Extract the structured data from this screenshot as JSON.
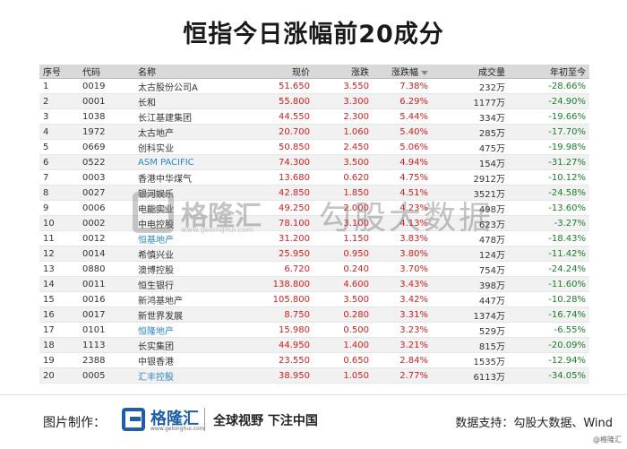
{
  "title": "恒指今日涨幅前20成分",
  "table": {
    "headers": [
      "序号",
      "代码",
      "名称",
      "现价",
      "涨跌",
      "涨跌幅",
      "成交量",
      "年初至今"
    ],
    "rows": [
      {
        "idx": "1",
        "code": "0019",
        "name": "太古股份公司A",
        "price": "51.650",
        "chg": "3.550",
        "pct": "7.38%",
        "vol": "232万",
        "ytd": "-28.66%",
        "link": false
      },
      {
        "idx": "2",
        "code": "0001",
        "name": "长和",
        "price": "55.800",
        "chg": "3.300",
        "pct": "6.29%",
        "vol": "1177万",
        "ytd": "-24.90%",
        "link": false
      },
      {
        "idx": "3",
        "code": "1038",
        "name": "长江基建集团",
        "price": "44.550",
        "chg": "2.300",
        "pct": "5.44%",
        "vol": "334万",
        "ytd": "-19.66%",
        "link": false
      },
      {
        "idx": "4",
        "code": "1972",
        "name": "太古地产",
        "price": "20.700",
        "chg": "1.060",
        "pct": "5.40%",
        "vol": "285万",
        "ytd": "-17.70%",
        "link": false
      },
      {
        "idx": "5",
        "code": "0669",
        "name": "创科实业",
        "price": "50.850",
        "chg": "2.450",
        "pct": "5.06%",
        "vol": "475万",
        "ytd": "-19.98%",
        "link": false
      },
      {
        "idx": "6",
        "code": "0522",
        "name": "ASM PACIFIC",
        "price": "74.300",
        "chg": "3.500",
        "pct": "4.94%",
        "vol": "154万",
        "ytd": "-31.27%",
        "link": true
      },
      {
        "idx": "7",
        "code": "0003",
        "name": "香港中华煤气",
        "price": "13.680",
        "chg": "0.620",
        "pct": "4.75%",
        "vol": "2912万",
        "ytd": "-10.12%",
        "link": false
      },
      {
        "idx": "8",
        "code": "0027",
        "name": "银河娱乐",
        "price": "42.850",
        "chg": "1.850",
        "pct": "4.51%",
        "vol": "3521万",
        "ytd": "-24.58%",
        "link": false
      },
      {
        "idx": "9",
        "code": "0006",
        "name": "电能实业",
        "price": "49.250",
        "chg": "2.000",
        "pct": "4.23%",
        "vol": "498万",
        "ytd": "-13.60%",
        "link": false
      },
      {
        "idx": "10",
        "code": "0002",
        "name": "中电控股",
        "price": "78.100",
        "chg": "3.100",
        "pct": "4.13%",
        "vol": "623万",
        "ytd": "-3.27%",
        "link": false
      },
      {
        "idx": "11",
        "code": "0012",
        "name": "恒基地产",
        "price": "31.200",
        "chg": "1.150",
        "pct": "3.83%",
        "vol": "478万",
        "ytd": "-18.43%",
        "link": true
      },
      {
        "idx": "12",
        "code": "0014",
        "name": "希慎兴业",
        "price": "25.950",
        "chg": "0.950",
        "pct": "3.80%",
        "vol": "124万",
        "ytd": "-11.42%",
        "link": false
      },
      {
        "idx": "13",
        "code": "0880",
        "name": "澳博控股",
        "price": "6.720",
        "chg": "0.240",
        "pct": "3.70%",
        "vol": "754万",
        "ytd": "-24.24%",
        "link": false
      },
      {
        "idx": "14",
        "code": "0011",
        "name": "恒生银行",
        "price": "138.800",
        "chg": "4.600",
        "pct": "3.43%",
        "vol": "398万",
        "ytd": "-11.60%",
        "link": false
      },
      {
        "idx": "15",
        "code": "0016",
        "name": "新鸿基地产",
        "price": "105.800",
        "chg": "3.500",
        "pct": "3.42%",
        "vol": "447万",
        "ytd": "-10.28%",
        "link": false
      },
      {
        "idx": "16",
        "code": "0017",
        "name": "新世界发展",
        "price": "8.750",
        "chg": "0.280",
        "pct": "3.31%",
        "vol": "1374万",
        "ytd": "-16.74%",
        "link": false
      },
      {
        "idx": "17",
        "code": "0101",
        "name": "恒隆地产",
        "price": "15.980",
        "chg": "0.500",
        "pct": "3.23%",
        "vol": "529万",
        "ytd": "-6.55%",
        "link": true
      },
      {
        "idx": "18",
        "code": "1113",
        "name": "长实集团",
        "price": "44.950",
        "chg": "1.400",
        "pct": "3.21%",
        "vol": "815万",
        "ytd": "-20.09%",
        "link": false
      },
      {
        "idx": "19",
        "code": "2388",
        "name": "中银香港",
        "price": "23.550",
        "chg": "0.650",
        "pct": "2.84%",
        "vol": "1535万",
        "ytd": "-12.94%",
        "link": false
      },
      {
        "idx": "20",
        "code": "0005",
        "name": "汇丰控股",
        "price": "38.950",
        "chg": "1.050",
        "pct": "2.77%",
        "vol": "6113万",
        "ytd": "-34.05%",
        "link": true
      }
    ]
  },
  "watermark": {
    "brand": "格隆汇",
    "url": "www.gelonghui.com",
    "text": "勾股大数据"
  },
  "footer": {
    "made_by": "图片制作：",
    "brand": "格隆汇",
    "url": "www.gelonghui.com",
    "slogan": "全球视野 下注中国",
    "source": "数据支持：勾股大数据、Wind",
    "tag": "@格隆汇"
  },
  "colors": {
    "up": "#d21f1f",
    "down": "#1b7e2b",
    "link": "#2f86c6",
    "brand": "#1f5fa8"
  }
}
